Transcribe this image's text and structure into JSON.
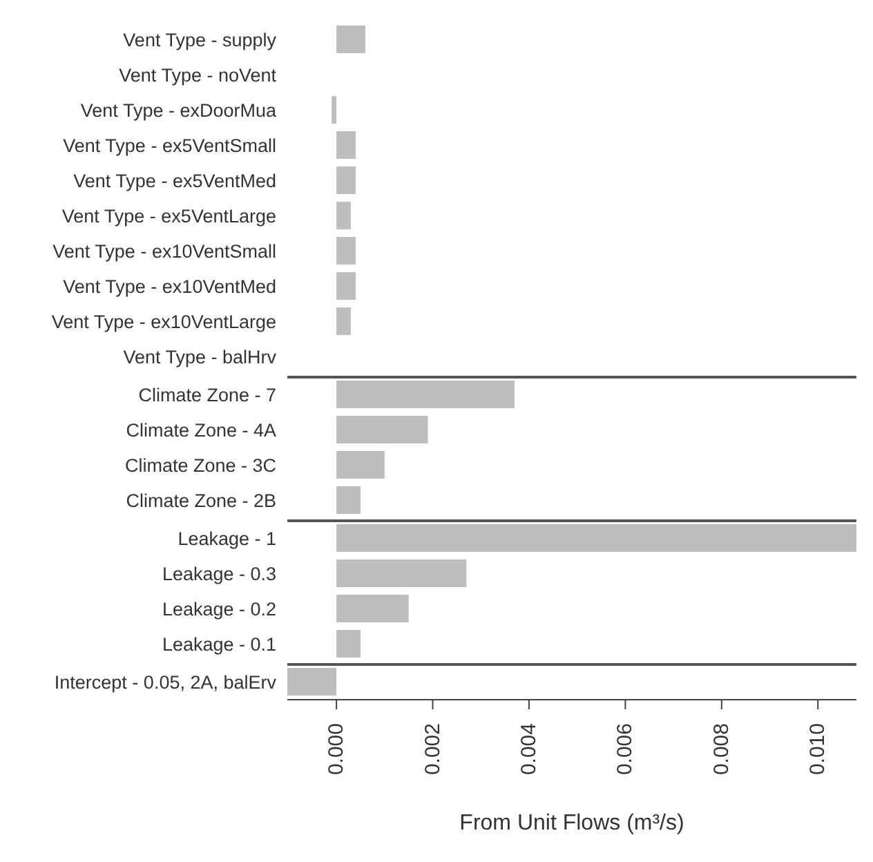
{
  "chart_data": [
    {
      "type": "bar",
      "orientation": "horizontal",
      "categories": [
        "Vent Type - supply",
        "Vent Type - noVent",
        "Vent Type - exDoorMua",
        "Vent Type - ex5VentSmall",
        "Vent Type - ex5VentMed",
        "Vent Type - ex5VentLarge",
        "Vent Type - ex10VentSmall",
        "Vent Type - ex10VentMed",
        "Vent Type - ex10VentLarge",
        "Vent Type - balHrv"
      ],
      "values": [
        0.0006,
        0.0,
        -0.0001,
        0.0004,
        0.0004,
        0.0003,
        0.0004,
        0.0004,
        0.0003,
        0.0
      ],
      "color": "#bebebe",
      "xlim": [
        -0.00102,
        0.0108
      ],
      "tick_labels": "y"
    },
    {
      "type": "bar",
      "orientation": "horizontal",
      "categories": [
        "Climate Zone - 7",
        "Climate Zone - 4A",
        "Climate Zone - 3C",
        "Climate Zone - 2B"
      ],
      "values": [
        0.0037,
        0.0019,
        0.001,
        0.0005
      ],
      "color": "#bebebe",
      "xlim": [
        -0.00102,
        0.0108
      ],
      "tick_labels": "y"
    },
    {
      "type": "bar",
      "orientation": "horizontal",
      "categories": [
        "Leakage - 1",
        "Leakage - 0.3",
        "Leakage - 0.2",
        "Leakage - 0.1"
      ],
      "values": [
        0.0108,
        0.0027,
        0.0015,
        0.0005
      ],
      "color": "#bebebe",
      "xlim": [
        -0.00102,
        0.0108
      ],
      "tick_labels": "y"
    },
    {
      "type": "bar",
      "orientation": "horizontal",
      "categories": [
        "Intercept - 0.05, 2A, balErv"
      ],
      "values": [
        -0.00102
      ],
      "color": "#bebebe",
      "xlim": [
        -0.00102,
        0.0108
      ],
      "xticks": [
        {
          "value": 0,
          "label": "0.000"
        },
        {
          "value": 0.002,
          "label": "0.002"
        },
        {
          "value": 0.004,
          "label": "0.004"
        },
        {
          "value": 0.006,
          "label": "0.006"
        },
        {
          "value": 0.008,
          "label": "0.008"
        },
        {
          "value": 0.01,
          "label": "0.010"
        }
      ],
      "xlabel": "From Unit Flows (m³/s)"
    }
  ]
}
